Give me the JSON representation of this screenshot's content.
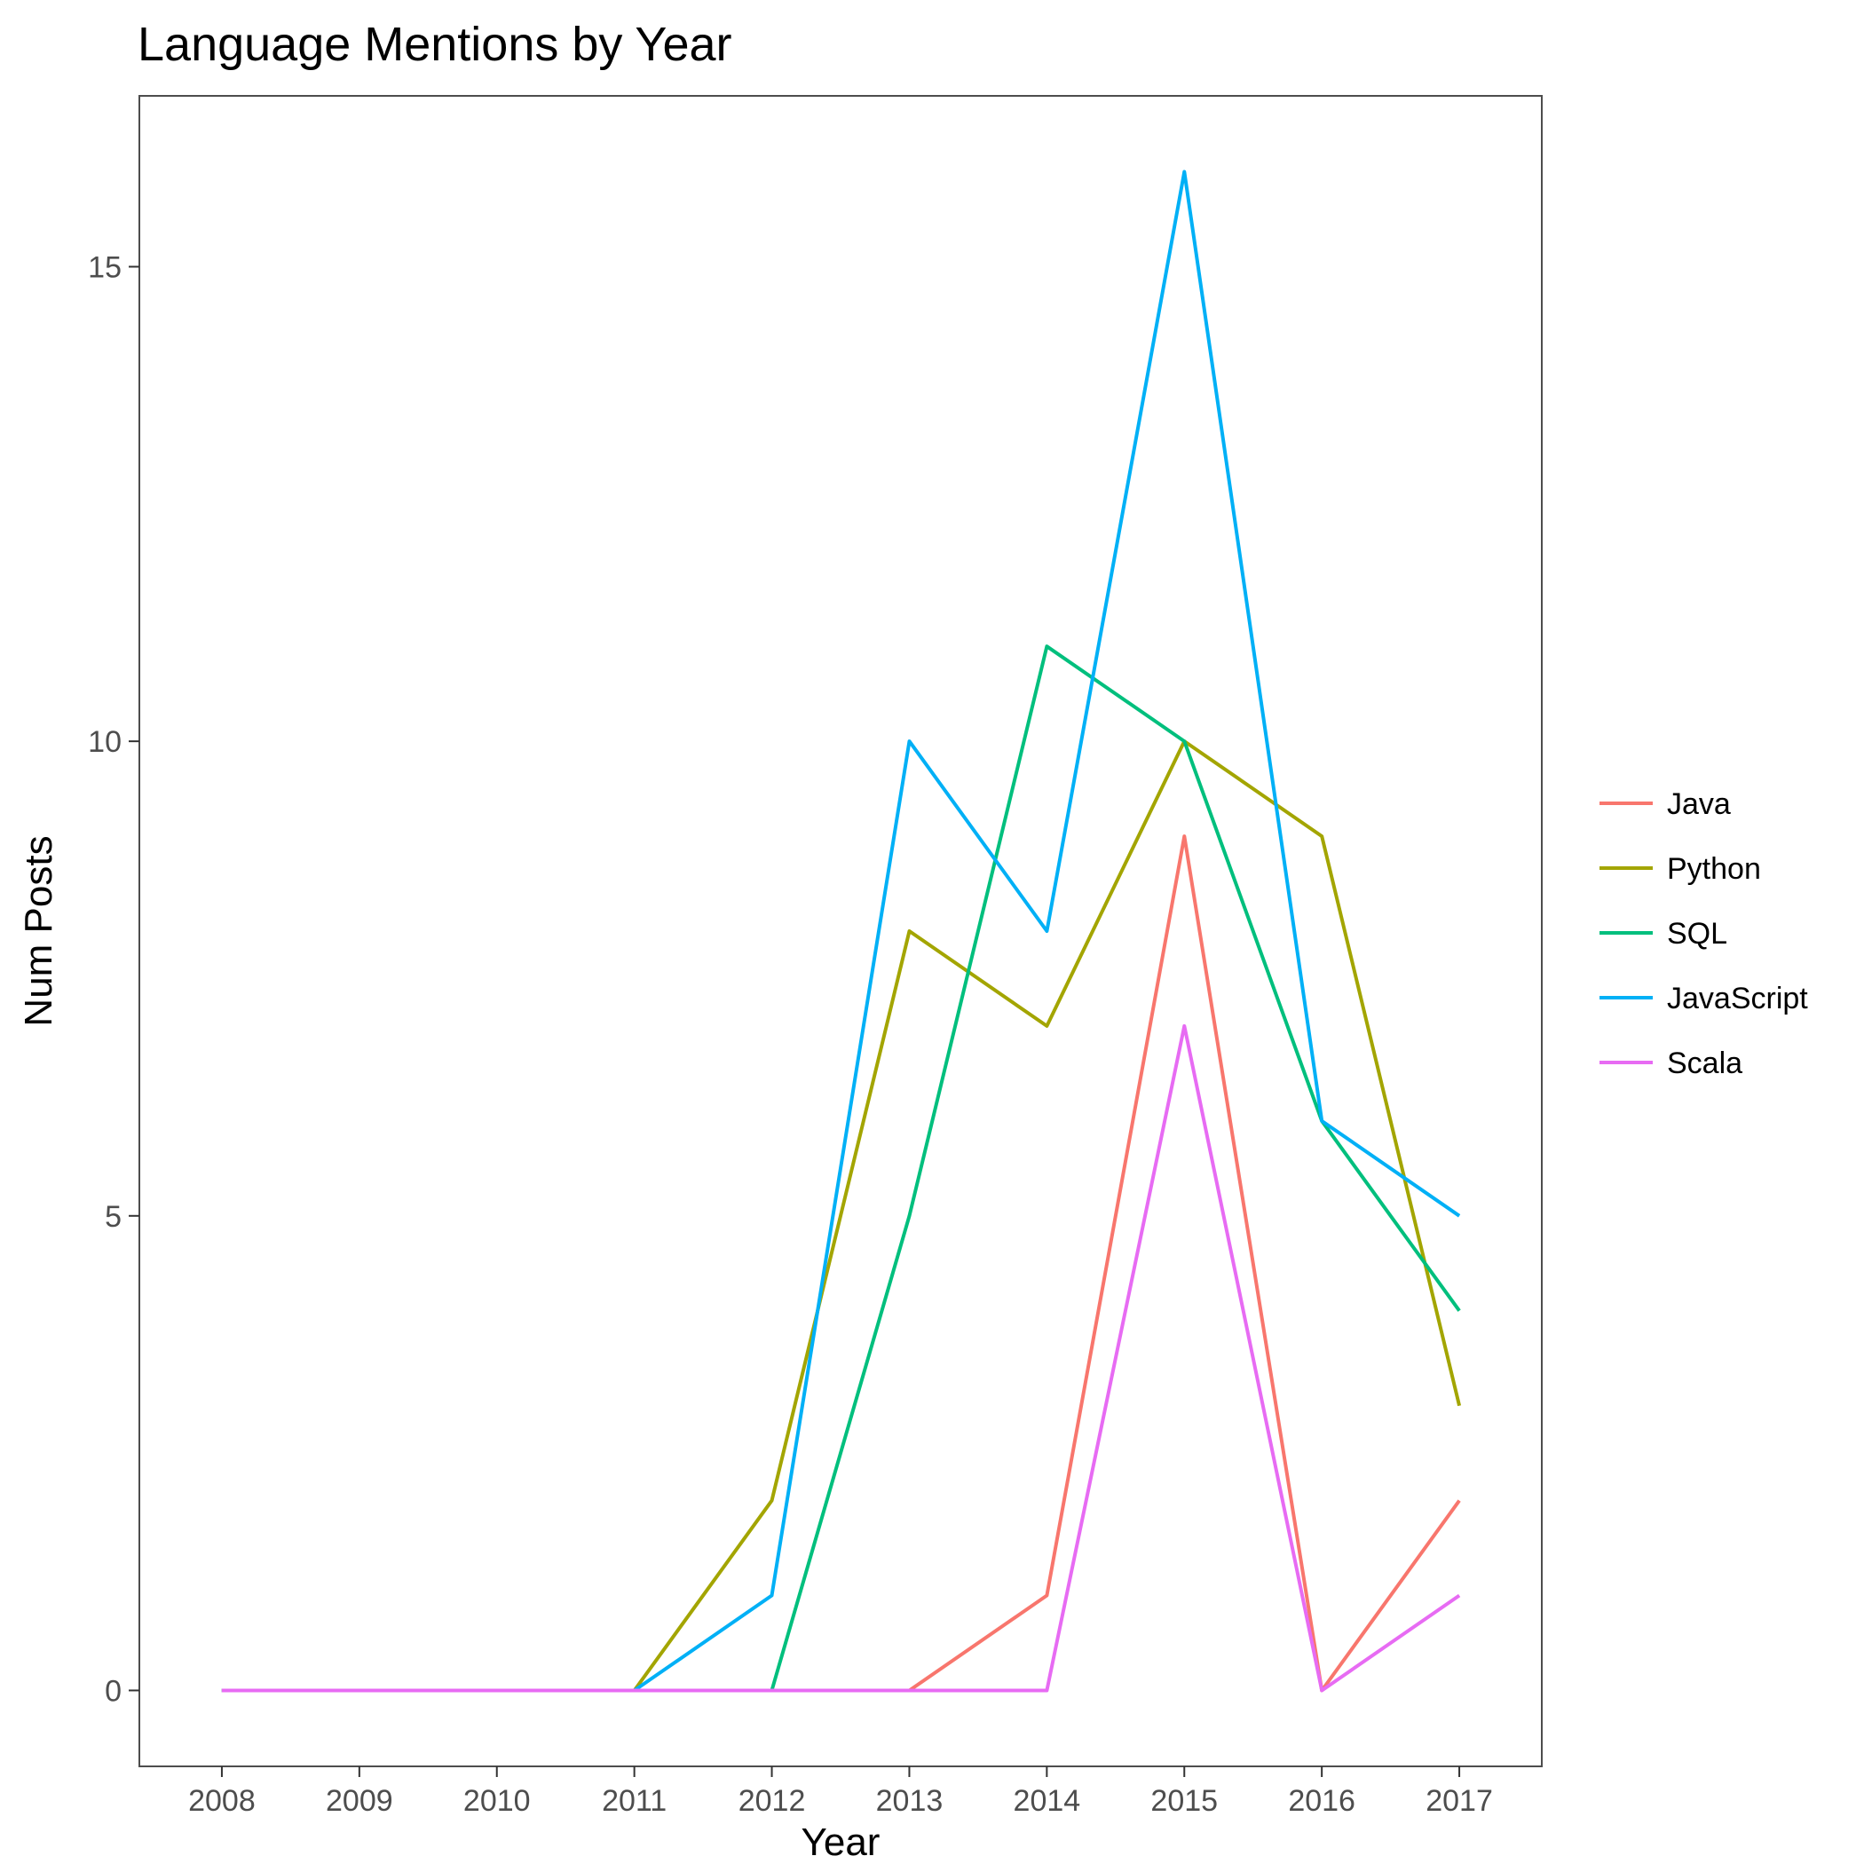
{
  "chart_data": {
    "type": "line",
    "title": "Language Mentions by Year",
    "xlabel": "Year",
    "ylabel": "Num Posts",
    "x": [
      2008,
      2009,
      2010,
      2011,
      2012,
      2013,
      2014,
      2015,
      2016,
      2017
    ],
    "xlim": [
      2007.4,
      2017.6
    ],
    "ylim": [
      -0.8,
      16.8
    ],
    "yticks": [
      0,
      5,
      10,
      15
    ],
    "grid": false,
    "legend_position": "right",
    "series": [
      {
        "name": "Java",
        "color": "#F8766D",
        "values": [
          0,
          0,
          0,
          0,
          0,
          0,
          1,
          9,
          0,
          2
        ]
      },
      {
        "name": "Python",
        "color": "#A3A500",
        "values": [
          0,
          0,
          0,
          0,
          2,
          8,
          7,
          10,
          9,
          3
        ]
      },
      {
        "name": "SQL",
        "color": "#00BF7D",
        "values": [
          0,
          0,
          0,
          0,
          0,
          5,
          11,
          10,
          6,
          4
        ]
      },
      {
        "name": "JavaScript",
        "color": "#00B0F6",
        "values": [
          0,
          0,
          0,
          0,
          1,
          10,
          8,
          16,
          6,
          5
        ]
      },
      {
        "name": "Scala",
        "color": "#E76BF3",
        "values": [
          0,
          0,
          0,
          0,
          0,
          0,
          0,
          7,
          0,
          1
        ]
      }
    ]
  }
}
